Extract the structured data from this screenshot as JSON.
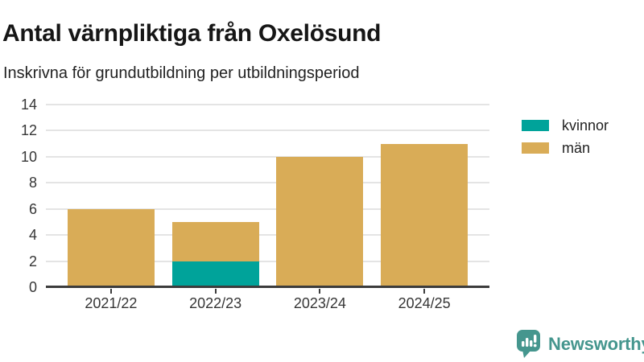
{
  "header": {
    "title": "Antal värnpliktiga från Oxelösund",
    "subtitle": "Inskrivna för grundutbildning per utbildningsperiod"
  },
  "chart_data": {
    "type": "bar",
    "stacked": true,
    "title": "Antal värnpliktiga från Oxelösund",
    "subtitle": "Inskrivna för grundutbildning per utbildningsperiod",
    "categories": [
      "2021/22",
      "2022/23",
      "2023/24",
      "2024/25"
    ],
    "series": [
      {
        "name": "kvinnor",
        "color": "#00a39a",
        "values": [
          0,
          2,
          0,
          0
        ]
      },
      {
        "name": "män",
        "color": "#d9ac57",
        "values": [
          6,
          3,
          10,
          11
        ]
      }
    ],
    "stack_totals": [
      6,
      5,
      10,
      11
    ],
    "xlabel": "",
    "ylabel": "",
    "ylim": [
      0,
      14
    ],
    "yticks": [
      0,
      2,
      4,
      6,
      8,
      10,
      12,
      14
    ],
    "grid": "horizontal",
    "legend_position": "right"
  },
  "colors": {
    "kvinnor": "#00a39a",
    "man": "#d9ac57",
    "gridline": "#e4e4e4",
    "axis": "#3c3c3c",
    "brand": "#45968e"
  },
  "footer": {
    "brand": "Newsworthy"
  }
}
